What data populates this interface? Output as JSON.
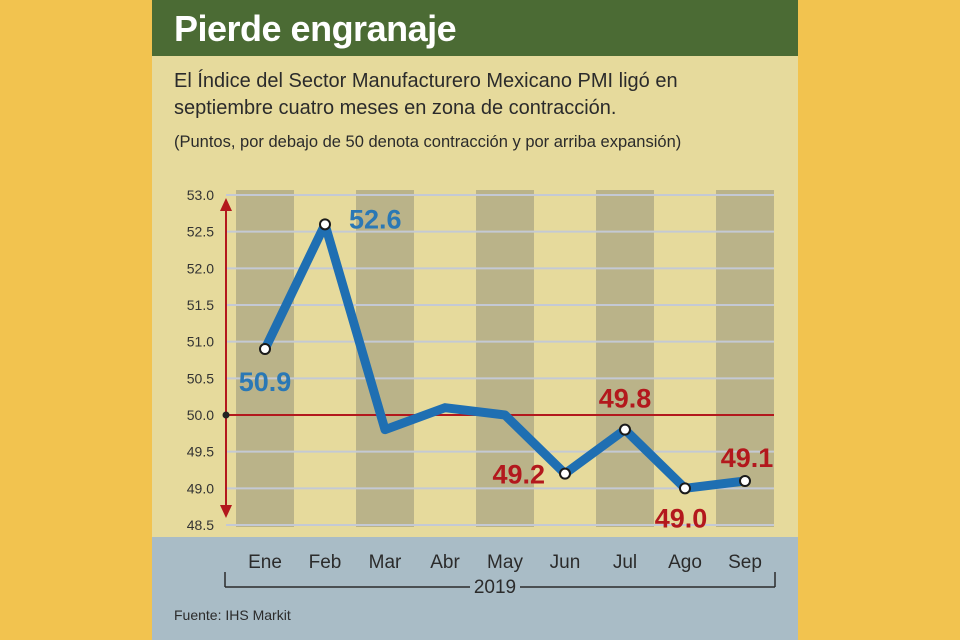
{
  "title": "Pierde engranaje",
  "subtitle": "El Índice del Sector Manufacturero Mexicano PMI ligó en septiembre cuatro meses en zona de contracción.",
  "note": "(Puntos, por debajo de 50 denota contracción y por arriba expansión)",
  "source": "Fuente: IHS Markit",
  "colors": {
    "background": "#f2c34f",
    "panel": "#e6da9c",
    "header": "#4b6b34",
    "line": "#1f6fb2",
    "label_blue": "#2a78b5",
    "label_red": "#b3181d",
    "threshold": "#b3181d",
    "bottom_band": "#a9bcc6"
  },
  "chart_data": {
    "type": "line",
    "x": [
      "Ene",
      "Feb",
      "Mar",
      "Abr",
      "May",
      "Jun",
      "Jul",
      "Ago",
      "Sep"
    ],
    "values": [
      50.9,
      52.6,
      49.8,
      50.1,
      50.0,
      49.2,
      49.8,
      49.0,
      49.1
    ],
    "xlabel": "2019",
    "ylabel": "",
    "ylim": [
      48.5,
      53.0
    ],
    "yticks": [
      "53.0",
      "52.5",
      "52.0",
      "51.5",
      "51.0",
      "50.5",
      "50.0",
      "49.5",
      "49.0",
      "48.5"
    ],
    "threshold": 50.0,
    "grid": true,
    "shaded_months": [
      "Ene",
      "Mar",
      "May",
      "Jul",
      "Sep"
    ],
    "marked_points": [
      {
        "month": "Ene",
        "label": "50.9",
        "color": "blue"
      },
      {
        "month": "Feb",
        "label": "52.6",
        "color": "blue"
      },
      {
        "month": "Jun",
        "label": "49.2",
        "color": "red"
      },
      {
        "month": "Jul",
        "label": "49.8",
        "color": "red"
      },
      {
        "month": "Ago",
        "label": "49.0",
        "color": "red"
      },
      {
        "month": "Sep",
        "label": "49.1",
        "color": "red"
      }
    ]
  }
}
